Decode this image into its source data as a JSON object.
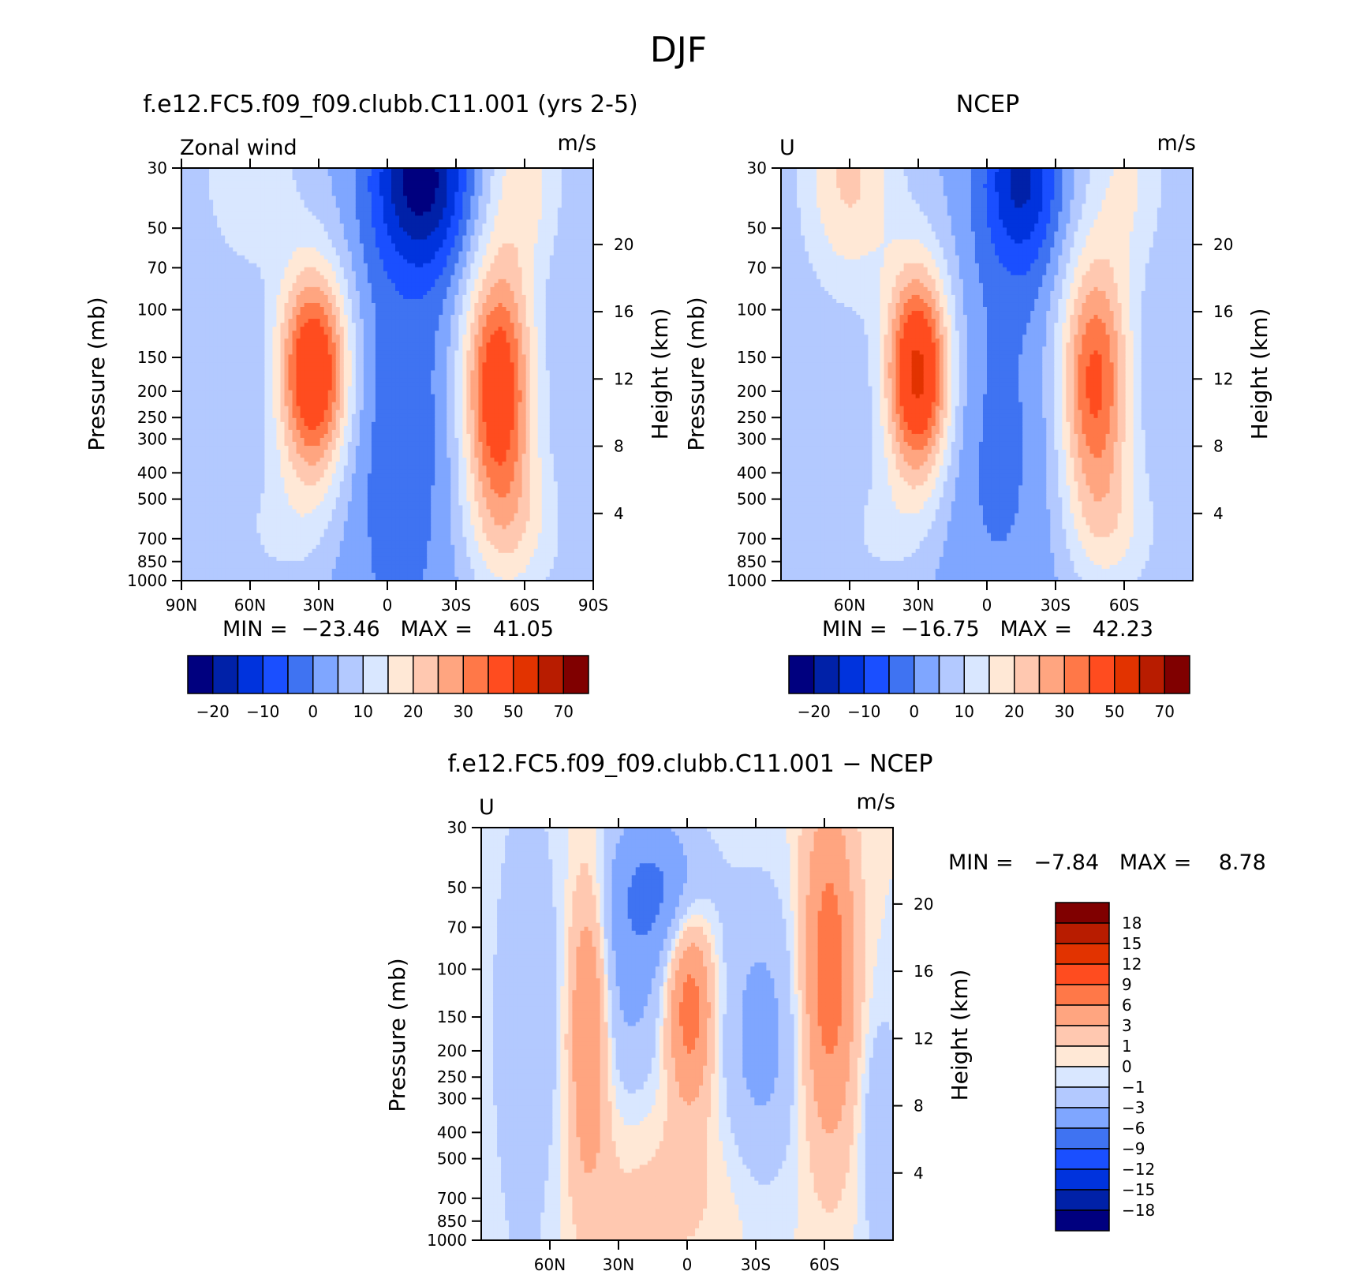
{
  "figure": {
    "season_title": "DJF"
  },
  "chart_data": [
    {
      "type": "heatmap",
      "id": "model",
      "title": "f.e12.FC5.f09_f09.clubb.C11.001 (yrs 2-5)",
      "variable_label": "Zonal wind",
      "units": "m/s",
      "xlabel": "",
      "ylabel": "Pressure (mb)",
      "y2label": "Height (km)",
      "x_ticks": [
        "90N",
        "60N",
        "30N",
        "0",
        "30S",
        "60S",
        "90S"
      ],
      "y_ticks": [
        30,
        50,
        70,
        100,
        150,
        200,
        250,
        300,
        400,
        500,
        700,
        850,
        1000
      ],
      "y2_ticks": [
        4,
        8,
        12,
        16,
        20
      ],
      "stats": "MIN =  −23.46   MAX =   41.05",
      "min": -23.46,
      "max": 41.05,
      "colorbar_labels": [
        "−20",
        "−10",
        "0",
        "10",
        "20",
        "30",
        "50",
        "70"
      ],
      "colors": [
        "#00007f",
        "#0021a8",
        "#0033dd",
        "#1a4fff",
        "#3f73f2",
        "#7fa6ff",
        "#b3c9ff",
        "#d9e7ff",
        "#ffe8d6",
        "#ffc8b0",
        "#ffa580",
        "#ff7848",
        "#ff4c1f",
        "#e23300",
        "#b81c00",
        "#800000"
      ]
    },
    {
      "type": "heatmap",
      "id": "ncep",
      "title": "NCEP",
      "variable_label": "U",
      "units": "m/s",
      "xlabel": "",
      "ylabel": "Pressure (mb)",
      "y2label": "Height (km)",
      "x_ticks": [
        "60N",
        "30N",
        "0",
        "30S",
        "60S"
      ],
      "y_ticks": [
        30,
        50,
        70,
        100,
        150,
        200,
        250,
        300,
        400,
        500,
        700,
        850,
        1000
      ],
      "y2_ticks": [
        4,
        8,
        12,
        16,
        20
      ],
      "stats": "MIN =  −16.75   MAX =   42.23",
      "min": -16.75,
      "max": 42.23,
      "colorbar_labels": [
        "−20",
        "−10",
        "0",
        "10",
        "20",
        "30",
        "50",
        "70"
      ],
      "colors": [
        "#00007f",
        "#0021a8",
        "#0033dd",
        "#1a4fff",
        "#3f73f2",
        "#7fa6ff",
        "#b3c9ff",
        "#d9e7ff",
        "#ffe8d6",
        "#ffc8b0",
        "#ffa580",
        "#ff7848",
        "#ff4c1f",
        "#e23300",
        "#b81c00",
        "#800000"
      ]
    },
    {
      "type": "heatmap",
      "id": "diff",
      "title": "f.e12.FC5.f09_f09.clubb.C11.001 − NCEP",
      "variable_label": "U",
      "units": "m/s",
      "xlabel": "",
      "ylabel": "Pressure (mb)",
      "y2label": "Height (km)",
      "x_ticks": [
        "60N",
        "30N",
        "0",
        "30S",
        "60S"
      ],
      "y_ticks": [
        30,
        50,
        70,
        100,
        150,
        200,
        250,
        300,
        400,
        500,
        700,
        850,
        1000
      ],
      "y2_ticks": [
        4,
        8,
        12,
        16,
        20
      ],
      "stats": "MIN =   −7.84   MAX =    8.78",
      "min": -7.84,
      "max": 8.78,
      "colorbar_labels": [
        "18",
        "15",
        "12",
        "9",
        "6",
        "3",
        "1",
        "0",
        "−1",
        "−3",
        "−6",
        "−9",
        "−12",
        "−15",
        "−18"
      ],
      "colors": [
        "#800000",
        "#b81c00",
        "#e23300",
        "#ff4c1f",
        "#ff7848",
        "#ffa580",
        "#ffc8b0",
        "#ffe8d6",
        "#d9e7ff",
        "#b3c9ff",
        "#7fa6ff",
        "#3f73f2",
        "#1a4fff",
        "#0033dd",
        "#0021a8",
        "#00007f"
      ]
    }
  ]
}
